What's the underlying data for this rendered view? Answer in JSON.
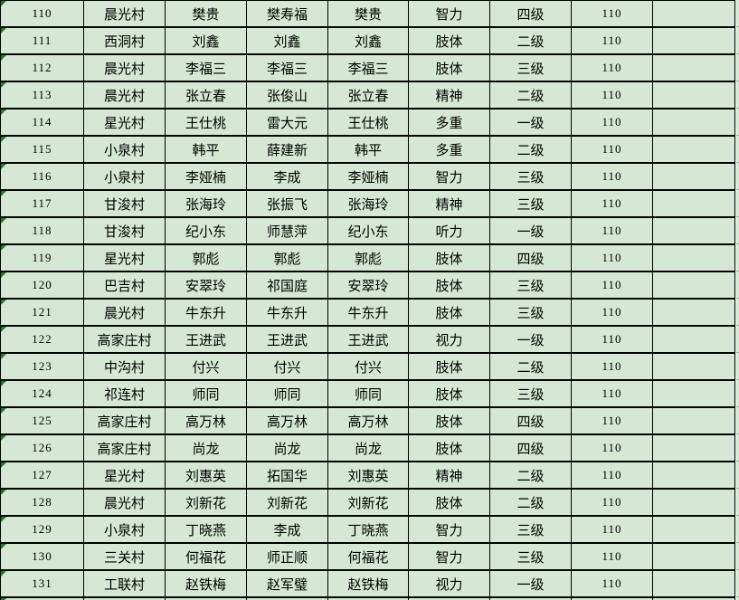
{
  "colors": {
    "cell_bg": "#d4e8d4",
    "border": "#000000",
    "gridline": "#a8a8a8",
    "indicator_triangle": "#227a22"
  },
  "table": {
    "rows": [
      [
        "110",
        "晨光村",
        "樊贵",
        "樊寿福",
        "樊贵",
        "智力",
        "四级",
        "110",
        ""
      ],
      [
        "111",
        "西洞村",
        "刘鑫",
        "刘鑫",
        "刘鑫",
        "肢体",
        "二级",
        "110",
        ""
      ],
      [
        "112",
        "晨光村",
        "李福三",
        "李福三",
        "李福三",
        "肢体",
        "三级",
        "110",
        ""
      ],
      [
        "113",
        "晨光村",
        "张立春",
        "张俊山",
        "张立春",
        "精神",
        "二级",
        "110",
        ""
      ],
      [
        "114",
        "星光村",
        "王仕桃",
        "雷大元",
        "王仕桃",
        "多重",
        "一级",
        "110",
        ""
      ],
      [
        "115",
        "小泉村",
        "韩平",
        "薛建新",
        "韩平",
        "多重",
        "二级",
        "110",
        ""
      ],
      [
        "116",
        "小泉村",
        "李娅楠",
        "李成",
        "李娅楠",
        "智力",
        "三级",
        "110",
        ""
      ],
      [
        "117",
        "甘浚村",
        "张海玲",
        "张振飞",
        "张海玲",
        "精神",
        "三级",
        "110",
        ""
      ],
      [
        "118",
        "甘浚村",
        "纪小东",
        "师慧萍",
        "纪小东",
        "听力",
        "一级",
        "110",
        ""
      ],
      [
        "119",
        "星光村",
        "郭彪",
        "郭彪",
        "郭彪",
        "肢体",
        "四级",
        "110",
        ""
      ],
      [
        "120",
        "巴吉村",
        "安翠玲",
        "祁国庭",
        "安翠玲",
        "肢体",
        "三级",
        "110",
        ""
      ],
      [
        "121",
        "晨光村",
        "牛东升",
        "牛东升",
        "牛东升",
        "肢体",
        "三级",
        "110",
        ""
      ],
      [
        "122",
        "高家庄村",
        "王进武",
        "王进武",
        "王进武",
        "视力",
        "一级",
        "110",
        ""
      ],
      [
        "123",
        "中沟村",
        "付兴",
        "付兴",
        "付兴",
        "肢体",
        "二级",
        "110",
        ""
      ],
      [
        "124",
        "祁连村",
        "师同",
        "师同",
        "师同",
        "肢体",
        "三级",
        "110",
        ""
      ],
      [
        "125",
        "高家庄村",
        "高万林",
        "高万林",
        "高万林",
        "肢体",
        "四级",
        "110",
        ""
      ],
      [
        "126",
        "高家庄村",
        "尚龙",
        "尚龙",
        "尚龙",
        "肢体",
        "四级",
        "110",
        ""
      ],
      [
        "127",
        "星光村",
        "刘惠英",
        "拓国华",
        "刘惠英",
        "精神",
        "二级",
        "110",
        ""
      ],
      [
        "128",
        "晨光村",
        "刘新花",
        "刘新花",
        "刘新花",
        "肢体",
        "二级",
        "110",
        ""
      ],
      [
        "129",
        "小泉村",
        "丁晓燕",
        "李成",
        "丁晓燕",
        "智力",
        "三级",
        "110",
        ""
      ],
      [
        "130",
        "三关村",
        "何福花",
        "师正顺",
        "何福花",
        "智力",
        "三级",
        "110",
        ""
      ],
      [
        "131",
        "工联村",
        "赵铁梅",
        "赵军璧",
        "赵铁梅",
        "视力",
        "一级",
        "110",
        ""
      ]
    ]
  }
}
